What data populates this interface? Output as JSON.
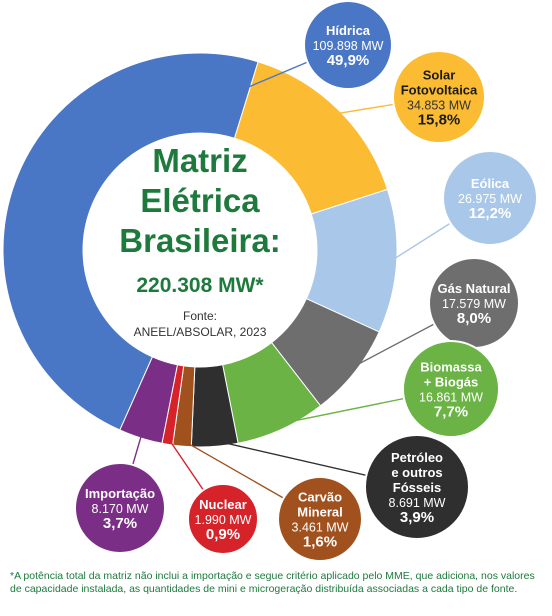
{
  "center": {
    "title_lines": [
      "Matriz",
      "Elétrica",
      "Brasileira:"
    ],
    "total": "220.308 MW*",
    "source_label": "Fonte:",
    "source": "ANEEL/ABSOLAR, 2023"
  },
  "footnote": "*A potência total da matriz não inclui a importação e segue critério aplicado pelo MME, que adiciona, nos valores de capacidade instalada, as quantidades de mini e microgeração distribuída associadas a cada tipo de fonte.",
  "chart_data": {
    "type": "pie",
    "title": "Matriz Elétrica Brasileira: 220.308 MW*",
    "unit": "MW",
    "slices": [
      {
        "name": "Hídrica",
        "value": 109898,
        "value_label": "109.898 MW",
        "percent_label": "49,9%",
        "color": "#4a76c6",
        "label_color": "#4a76c6"
      },
      {
        "name": "Solar Fotovoltaica",
        "value": 34853,
        "value_label": "34.853 MW",
        "percent_label": "15,8%",
        "color": "#fbbc34",
        "label_color": "#fbbc34",
        "label_dark": true
      },
      {
        "name": "Eólica",
        "value": 26975,
        "value_label": "26.975 MW",
        "percent_label": "12,2%",
        "color": "#a9c7e8",
        "label_color": "#a9c7e8"
      },
      {
        "name": "Gás Natural",
        "value": 17579,
        "value_label": "17.579 MW",
        "percent_label": "8,0%",
        "color": "#6e6e6e",
        "label_color": "#6e6e6e"
      },
      {
        "name": "Biomassa + Biogás",
        "value": 16861,
        "value_label": "16.861 MW",
        "percent_label": "7,7%",
        "color": "#6ab344",
        "label_color": "#6ab344"
      },
      {
        "name": "Petróleo e outros Fósseis",
        "value": 8691,
        "value_label": "8.691 MW",
        "percent_label": "3,9%",
        "color": "#2f2f2f",
        "label_color": "#2f2f2f"
      },
      {
        "name": "Carvão Mineral",
        "value": 3461,
        "value_label": "3.461 MW",
        "percent_label": "1,6%",
        "color": "#a0511d",
        "label_color": "#a0511d"
      },
      {
        "name": "Nuclear",
        "value": 1990,
        "value_label": "1.990 MW",
        "percent_label": "0,9%",
        "color": "#d6232a",
        "label_color": "#d6232a"
      },
      {
        "name": "Importação",
        "value": 8170,
        "value_label": "8.170 MW",
        "percent_label": "3,7%",
        "color": "#7a2e86",
        "label_color": "#7a2e86"
      }
    ],
    "name_lines": [
      [
        "Hídrica"
      ],
      [
        "Solar",
        "Fotovoltaica"
      ],
      [
        "Eólica"
      ],
      [
        "Gás Natural"
      ],
      [
        "Biomassa",
        "+ Biogás"
      ],
      [
        "Petróleo",
        "e outros",
        "Fósseis"
      ],
      [
        "Carvão",
        "Mineral"
      ],
      [
        "Nuclear"
      ],
      [
        "Importação"
      ]
    ]
  }
}
